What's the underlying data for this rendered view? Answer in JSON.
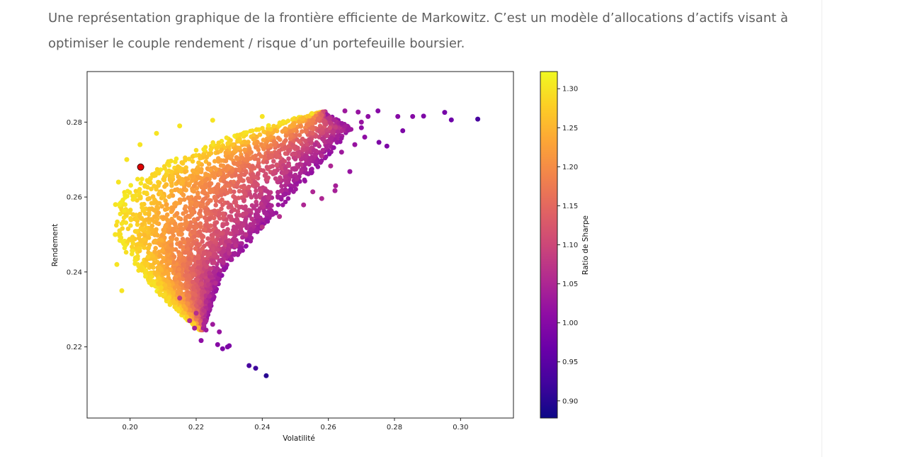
{
  "article": {
    "caption": "Une représentation graphique de la frontière efficiente de Markowitz. C’est un modèle d’allocations d’actifs visant à optimiser le couple rendement / risque d’un portefeuille boursier."
  },
  "chart_data": {
    "type": "scatter",
    "xlabel": "Volatilité",
    "ylabel": "Rendement",
    "xlim": [
      0.187,
      0.316
    ],
    "ylim": [
      0.201,
      0.2935
    ],
    "xticks": [
      "0.20",
      "0.22",
      "0.24",
      "0.26",
      "0.28",
      "0.30"
    ],
    "yticks": [
      "0.22",
      "0.24",
      "0.26",
      "0.28"
    ],
    "grid": false,
    "colormap": "plasma",
    "colorbar": {
      "label": "Ratio de Sharpe",
      "range": [
        0.878,
        1.322
      ],
      "ticks": [
        "0.90",
        "0.95",
        "1.00",
        "1.05",
        "1.10",
        "1.15",
        "1.20",
        "1.25",
        "1.30"
      ]
    },
    "highlight_point": {
      "x": 0.2032,
      "y": 0.268,
      "color": "#dd0000"
    },
    "frontier_points": [
      {
        "x": 0.1975,
        "y": 0.235
      },
      {
        "x": 0.196,
        "y": 0.242
      },
      {
        "x": 0.1955,
        "y": 0.25
      },
      {
        "x": 0.1956,
        "y": 0.258
      },
      {
        "x": 0.1965,
        "y": 0.264
      },
      {
        "x": 0.199,
        "y": 0.27
      },
      {
        "x": 0.203,
        "y": 0.274
      },
      {
        "x": 0.208,
        "y": 0.277
      },
      {
        "x": 0.215,
        "y": 0.279
      },
      {
        "x": 0.225,
        "y": 0.2805
      },
      {
        "x": 0.24,
        "y": 0.2815
      },
      {
        "x": 0.255,
        "y": 0.2823
      }
    ],
    "outlier_points": [
      {
        "x": 0.236,
        "y": 0.215,
        "sharpe": 0.93
      },
      {
        "x": 0.238,
        "y": 0.2143,
        "sharpe": 0.92
      },
      {
        "x": 0.2412,
        "y": 0.2123,
        "sharpe": 0.9
      },
      {
        "x": 0.2295,
        "y": 0.22,
        "sharpe": 0.99
      },
      {
        "x": 0.228,
        "y": 0.2195,
        "sharpe": 0.99
      },
      {
        "x": 0.2265,
        "y": 0.2206,
        "sharpe": 1.0
      },
      {
        "x": 0.2215,
        "y": 0.2217,
        "sharpe": 1.01
      },
      {
        "x": 0.23,
        "y": 0.2203,
        "sharpe": 0.99
      },
      {
        "x": 0.2952,
        "y": 0.2826,
        "sharpe": 0.98
      },
      {
        "x": 0.2972,
        "y": 0.2806,
        "sharpe": 0.97
      },
      {
        "x": 0.3052,
        "y": 0.2808,
        "sharpe": 0.93
      },
      {
        "x": 0.2888,
        "y": 0.2816,
        "sharpe": 0.99
      },
      {
        "x": 0.2855,
        "y": 0.2815,
        "sharpe": 1.0
      },
      {
        "x": 0.2825,
        "y": 0.2777,
        "sharpe": 0.99
      },
      {
        "x": 0.281,
        "y": 0.2815,
        "sharpe": 1.0
      },
      {
        "x": 0.2777,
        "y": 0.2736,
        "sharpe": 0.99
      },
      {
        "x": 0.2753,
        "y": 0.2746,
        "sharpe": 0.99
      },
      {
        "x": 0.2665,
        "y": 0.2668,
        "sharpe": 1.02
      },
      {
        "x": 0.27,
        "y": 0.28,
        "sharpe": 1.02
      },
      {
        "x": 0.275,
        "y": 0.283,
        "sharpe": 1.0
      },
      {
        "x": 0.2622,
        "y": 0.263,
        "sharpe": 1.04
      },
      {
        "x": 0.262,
        "y": 0.2617,
        "sharpe": 1.04
      },
      {
        "x": 0.258,
        "y": 0.2596,
        "sharpe": 1.05
      },
      {
        "x": 0.2525,
        "y": 0.2579,
        "sharpe": 1.05
      },
      {
        "x": 0.2553,
        "y": 0.2614,
        "sharpe": 1.05
      },
      {
        "x": 0.2607,
        "y": 0.2683,
        "sharpe": 1.05
      },
      {
        "x": 0.258,
        "y": 0.271,
        "sharpe": 1.06
      },
      {
        "x": 0.256,
        "y": 0.274,
        "sharpe": 1.06
      },
      {
        "x": 0.2452,
        "y": 0.2548,
        "sharpe": 1.06
      },
      {
        "x": 0.24,
        "y": 0.252,
        "sharpe": 1.07
      },
      {
        "x": 0.235,
        "y": 0.25,
        "sharpe": 1.07
      },
      {
        "x": 0.232,
        "y": 0.247,
        "sharpe": 1.07
      },
      {
        "x": 0.23,
        "y": 0.245,
        "sharpe": 1.07
      },
      {
        "x": 0.2282,
        "y": 0.2425,
        "sharpe": 1.06
      },
      {
        "x": 0.2258,
        "y": 0.237,
        "sharpe": 1.06
      },
      {
        "x": 0.224,
        "y": 0.2397,
        "sharpe": 1.07
      },
      {
        "x": 0.22,
        "y": 0.229,
        "sharpe": 1.06
      },
      {
        "x": 0.223,
        "y": 0.227,
        "sharpe": 1.05
      },
      {
        "x": 0.218,
        "y": 0.227,
        "sharpe": 1.06
      },
      {
        "x": 0.2195,
        "y": 0.225,
        "sharpe": 1.04
      },
      {
        "x": 0.225,
        "y": 0.226,
        "sharpe": 1.03
      },
      {
        "x": 0.227,
        "y": 0.224,
        "sharpe": 1.02
      },
      {
        "x": 0.223,
        "y": 0.2245,
        "sharpe": 1.03
      },
      {
        "x": 0.215,
        "y": 0.233,
        "sharpe": 1.08
      },
      {
        "x": 0.271,
        "y": 0.276,
        "sharpe": 1.01
      },
      {
        "x": 0.268,
        "y": 0.274,
        "sharpe": 1.02
      },
      {
        "x": 0.264,
        "y": 0.272,
        "sharpe": 1.03
      },
      {
        "x": 0.2665,
        "y": 0.278,
        "sharpe": 1.03
      },
      {
        "x": 0.272,
        "y": 0.2815,
        "sharpe": 1.01
      },
      {
        "x": 0.269,
        "y": 0.2827,
        "sharpe": 1.02
      },
      {
        "x": 0.265,
        "y": 0.283,
        "sharpe": 1.03
      },
      {
        "x": 0.27,
        "y": 0.2785,
        "sharpe": 1.01
      }
    ]
  }
}
